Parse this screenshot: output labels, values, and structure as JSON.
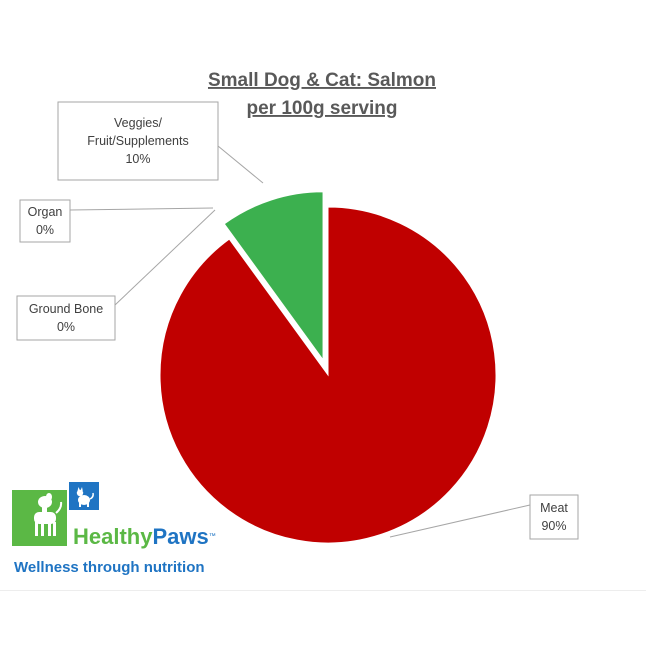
{
  "chart_data": {
    "type": "pie",
    "title": [
      "Small Dog & Cat: Salmon",
      "per 100g serving"
    ],
    "categories": [
      "Meat",
      "Veggies/ Fruit/Supplements",
      "Organ",
      "Ground Bone"
    ],
    "values": [
      90,
      10,
      0,
      0
    ],
    "value_labels": [
      "90%",
      "10%",
      "0%",
      "0%"
    ],
    "colors": [
      "#C00000",
      "#3CB04F",
      "#3CB04F",
      "#3CB04F"
    ],
    "exploded_slice": "Veggies/ Fruit/Supplements",
    "legend": "none, callout labels",
    "callouts": [
      {
        "lines": [
          "Veggies/",
          "Fruit/Supplements",
          "10%"
        ]
      },
      {
        "lines": [
          "Organ",
          "0%"
        ]
      },
      {
        "lines": [
          "Ground Bone",
          "0%"
        ]
      },
      {
        "lines": [
          "Meat",
          "90%"
        ]
      }
    ]
  },
  "brand": {
    "name_part1": "Healthy",
    "name_part2": "Paws",
    "trademark": "™",
    "tagline": "Wellness through nutrition",
    "green": "#5BB845",
    "blue": "#1F74C3"
  }
}
